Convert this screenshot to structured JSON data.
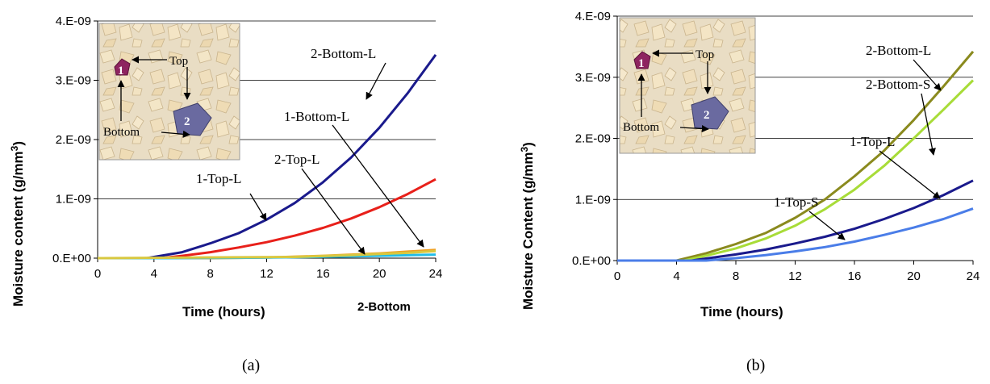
{
  "chart_data": [
    {
      "type": "line",
      "panel_caption": "(a)",
      "xlabel": "Time (hours)",
      "ylabel": "Moisture content (g/mm",
      "ylabel_sup": "3",
      "ylabel_close": ")",
      "xlim": [
        0,
        24
      ],
      "ylim": [
        0,
        4e-09
      ],
      "xticks": [
        "0",
        "4",
        "8",
        "12",
        "16",
        "20",
        "24"
      ],
      "yticks": [
        "0.E+00",
        "1.E-09",
        "2.E-09",
        "3.E-09",
        "4.E-09"
      ],
      "grid": "horizontal",
      "series": [
        {
          "name": "2-Bottom-L",
          "color": "#1a1a8c",
          "x": [
            3.5,
            6,
            8,
            10,
            12,
            14,
            16,
            18,
            20,
            22,
            24
          ],
          "y": [
            0,
            1e-10,
            2.5e-10,
            4.2e-10,
            6.5e-10,
            9.3e-10,
            1.28e-09,
            1.7e-09,
            2.2e-09,
            2.78e-09,
            3.43e-09
          ]
        },
        {
          "name": "1-Top-L",
          "color": "#e8201a",
          "x": [
            4.5,
            6,
            8,
            10,
            12,
            14,
            16,
            18,
            20,
            22,
            24
          ],
          "y": [
            0,
            4e-11,
            1e-10,
            1.8e-10,
            2.7e-10,
            3.8e-10,
            5.1e-10,
            6.7e-10,
            8.6e-10,
            1.08e-09,
            1.33e-09
          ]
        },
        {
          "name": "1-Bottom-L",
          "color": "#f0a020",
          "x": [
            8,
            12,
            16,
            20,
            24
          ],
          "y": [
            0,
            1e-11,
            4e-11,
            8e-11,
            1.4e-10
          ]
        },
        {
          "name": "2-Top-L",
          "color": "#22bde8",
          "x": [
            5,
            10,
            14,
            18,
            21,
            24
          ],
          "y": [
            0,
            5e-12,
            1.5e-11,
            3e-11,
            4.5e-11,
            6e-11
          ]
        },
        {
          "name": "2-Bottom",
          "color": "#d8c840",
          "x": [
            14,
            18,
            22,
            24
          ],
          "y": [
            2e-11,
            5e-11,
            9e-11,
            1.2e-10
          ]
        }
      ],
      "annotations": [
        "2-Bottom-L",
        "1-Bottom-L",
        "2-Top-L",
        "1-Top-L",
        "2-Bottom"
      ],
      "inset_labels": {
        "top": "Top",
        "bottom": "Bottom",
        "p1": "1",
        "p2": "2"
      }
    },
    {
      "type": "line",
      "panel_caption": "(b)",
      "xlabel": "Time (hours)",
      "ylabel": "Moisture Content (g/mm",
      "ylabel_sup": "3",
      "ylabel_close": ")",
      "xlim": [
        0,
        24
      ],
      "ylim": [
        0,
        4e-09
      ],
      "xticks": [
        "0",
        "4",
        "8",
        "12",
        "16",
        "20",
        "24"
      ],
      "yticks": [
        "0.E+00",
        "1.E-09",
        "2.E-09",
        "3.E-09",
        "4.E-09"
      ],
      "grid": "horizontal",
      "series": [
        {
          "name": "2-Bottom-L",
          "color": "#8a8a1e",
          "x": [
            4,
            6,
            8,
            10,
            12,
            14,
            16,
            18,
            20,
            22,
            24
          ],
          "y": [
            0,
            1.2e-10,
            2.7e-10,
            4.5e-10,
            7e-10,
            1e-09,
            1.38e-09,
            1.8e-09,
            2.3e-09,
            2.85e-09,
            3.42e-09
          ]
        },
        {
          "name": "2-Bottom-S",
          "color": "#a8dc38",
          "x": [
            4.5,
            6,
            8,
            10,
            12,
            14,
            16,
            18,
            20,
            22,
            24
          ],
          "y": [
            0,
            8e-11,
            2e-10,
            3.6e-10,
            5.7e-10,
            8.4e-10,
            1.16e-09,
            1.55e-09,
            2e-09,
            2.47e-09,
            2.95e-09
          ]
        },
        {
          "name": "1-Top-L",
          "color": "#1a1a8c",
          "x": [
            5,
            8,
            10,
            12,
            14,
            16,
            18,
            20,
            22,
            24
          ],
          "y": [
            0,
            1e-10,
            1.8e-10,
            2.8e-10,
            3.9e-10,
            5.2e-10,
            6.8e-10,
            8.6e-10,
            1.07e-09,
            1.31e-09
          ]
        },
        {
          "name": "1-Top-S",
          "color": "#4a7de8",
          "x": [
            6,
            8,
            10,
            12,
            14,
            16,
            18,
            20,
            22,
            24
          ],
          "y": [
            0,
            4e-11,
            9e-11,
            1.5e-10,
            2.2e-10,
            3.1e-10,
            4.2e-10,
            5.4e-10,
            6.8e-10,
            8.5e-10
          ]
        }
      ],
      "annotations": [
        "2-Bottom-L",
        "2-Bottom-S",
        "1-Top-L",
        "1-Top-S"
      ],
      "inset_labels": {
        "top": "Top",
        "bottom": "Bottom",
        "p1": "1",
        "p2": "2"
      }
    }
  ]
}
